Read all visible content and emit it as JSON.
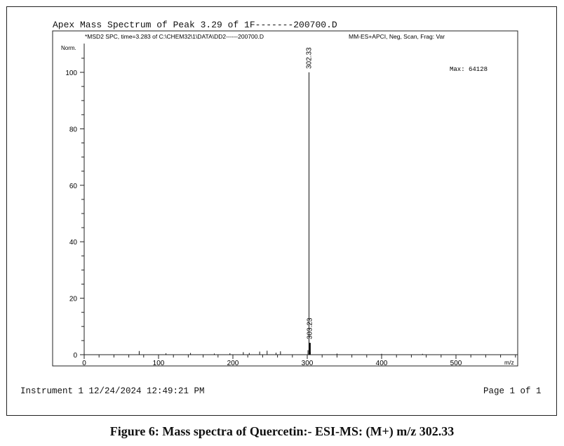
{
  "chart_title": "Apex Mass Spectrum of Peak 3.29 of 1F-------200700.D",
  "footer": {
    "instrument": "Instrument 1 12/24/2024 12:49:21 PM",
    "page": "Page   1 of 1"
  },
  "caption": "Figure 6: Mass spectra of Quercetin:- ESI-MS: (M+) m/z 302.33",
  "chart_data": {
    "type": "bar",
    "header_left": "*MSD2 SPC, time=3.283 of C:\\CHEM32\\1\\DATA\\DD2------200700.D",
    "header_right": "MM-ES+APCI, Neg, Scan, Frag: Var",
    "max_label": "Max: 64128",
    "ylabel": "Norm.",
    "xlabel": "m/z",
    "xlim": [
      0,
      590
    ],
    "ylim": [
      0,
      110
    ],
    "xticks": [
      0,
      100,
      200,
      300,
      400,
      500
    ],
    "yticks": [
      0,
      20,
      40,
      60,
      80,
      100
    ],
    "peaks": [
      {
        "mz": 302.33,
        "intensity": 100,
        "label": "302.33"
      },
      {
        "mz": 303.23,
        "intensity": 4.2,
        "label": "303.23"
      },
      {
        "mz": 74,
        "intensity": 1.3
      },
      {
        "mz": 110,
        "intensity": 0.5
      },
      {
        "mz": 143,
        "intensity": 0.6
      },
      {
        "mz": 175,
        "intensity": 0.4
      },
      {
        "mz": 196,
        "intensity": 0.5
      },
      {
        "mz": 214,
        "intensity": 0.9
      },
      {
        "mz": 222,
        "intensity": 0.6
      },
      {
        "mz": 236,
        "intensity": 1.1
      },
      {
        "mz": 246,
        "intensity": 1.4
      },
      {
        "mz": 258,
        "intensity": 0.7
      },
      {
        "mz": 264,
        "intensity": 1.2
      },
      {
        "mz": 301,
        "intensity": 1.6
      },
      {
        "mz": 304.2,
        "intensity": 0.9
      },
      {
        "mz": 340,
        "intensity": 0.4
      },
      {
        "mz": 400,
        "intensity": 0.3
      },
      {
        "mz": 455,
        "intensity": 0.3
      }
    ]
  }
}
